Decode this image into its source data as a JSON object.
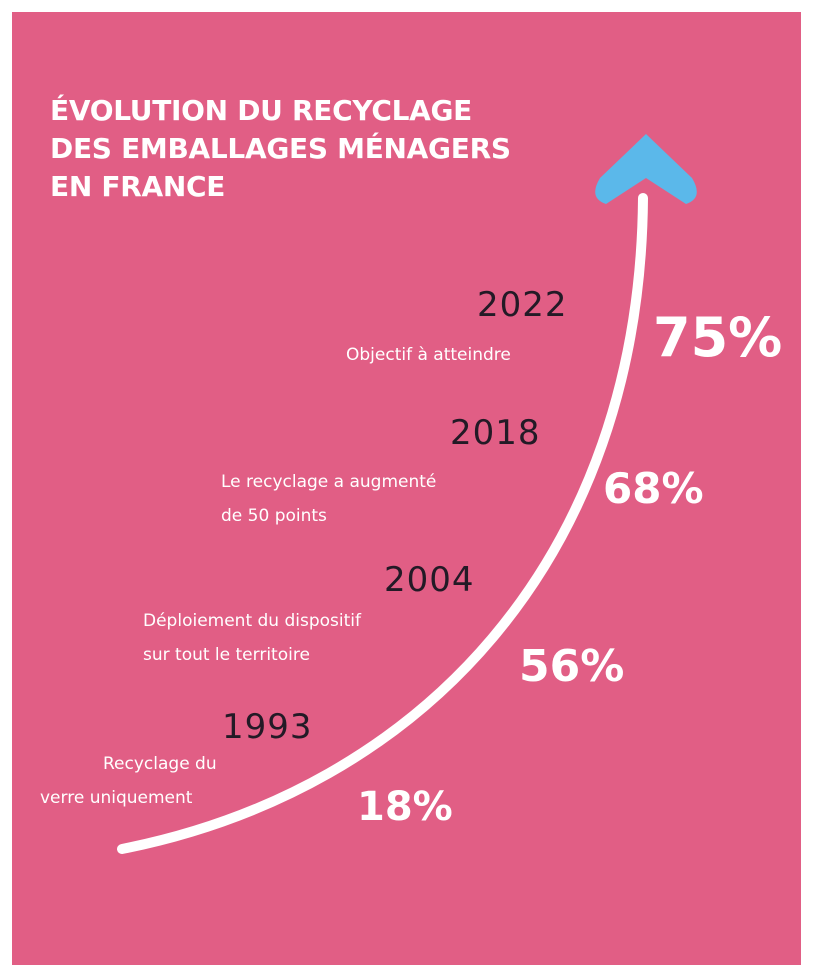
{
  "title": {
    "lines": [
      "ÉVOLUTION DU RECYCLAGE",
      "DES EMBALLAGES MÉNAGERS",
      "EN FRANCE"
    ]
  },
  "colors": {
    "background": "#e15e85",
    "arrow_head": "#5bb8ea",
    "curve": "#ffffff",
    "year_text": "#231a26"
  },
  "icons": {
    "arrow": "arrow-up-icon"
  },
  "chart_data": {
    "type": "line",
    "title": "ÉVOLUTION DU RECYCLAGE DES EMBALLAGES MÉNAGERS EN FRANCE",
    "x": [
      "1993",
      "2004",
      "2018",
      "2022"
    ],
    "values": [
      18,
      56,
      68,
      75
    ],
    "labels": [
      "18%",
      "56%",
      "68%",
      "75%"
    ],
    "annotations": [
      [
        "Recyclage du",
        "verre uniquement"
      ],
      [
        "Déploiement du dispositif",
        "sur tout le territoire"
      ],
      [
        "Le recyclage a augmenté",
        "de 50 points"
      ],
      [
        "Objectif à atteindre"
      ]
    ]
  }
}
